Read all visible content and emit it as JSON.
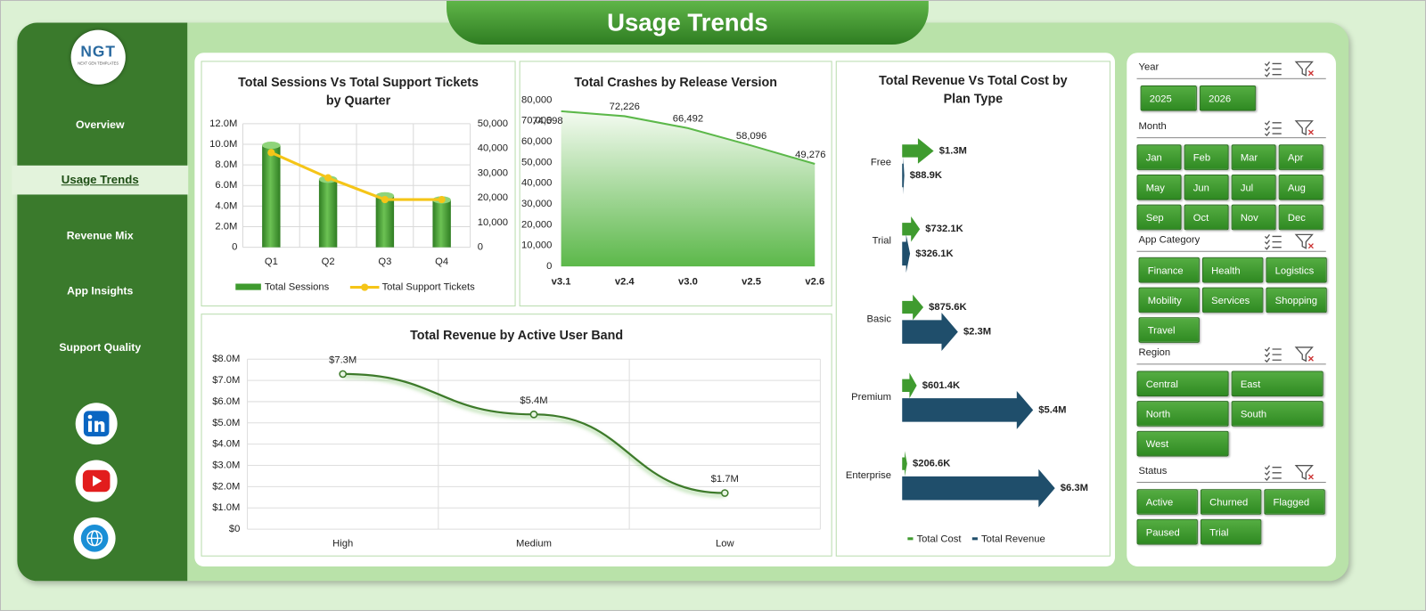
{
  "header": {
    "title": "Usage Trends"
  },
  "logo": {
    "text": "NGT",
    "tagline": "NEXT GEN TEMPLATES"
  },
  "nav": {
    "items": [
      "Overview",
      "Usage Trends",
      "Revenue Mix",
      "App Insights",
      "Support Quality"
    ],
    "active": 1
  },
  "slicers": [
    {
      "title": "Year",
      "items": [
        "2025",
        "2026"
      ]
    },
    {
      "title": "Month",
      "items": [
        "Jan",
        "Feb",
        "Mar",
        "Apr",
        "May",
        "Jun",
        "Jul",
        "Aug",
        "Sep",
        "Oct",
        "Nov",
        "Dec"
      ]
    },
    {
      "title": "App Category",
      "items": [
        "Finance",
        "Health",
        "Logistics",
        "Mobility",
        "Services",
        "Shopping",
        "Travel"
      ]
    },
    {
      "title": "Region",
      "items": [
        "Central",
        "East",
        "North",
        "South",
        "West"
      ]
    },
    {
      "title": "Status",
      "items": [
        "Active",
        "Churned",
        "Flagged",
        "Paused",
        "Trial"
      ]
    }
  ],
  "chart_data": [
    {
      "type": "bar_line",
      "title": "Total Sessions Vs Total Support Tickets by Quarter",
      "categories": [
        "Q1",
        "Q2",
        "Q3",
        "Q4"
      ],
      "series": [
        {
          "name": "Total Sessions",
          "type": "bar",
          "color": "#3f9b2f",
          "values": [
            9900000,
            6600000,
            5000000,
            4600000
          ]
        },
        {
          "name": "Total Support Tickets",
          "type": "line",
          "color": "#f5c518",
          "axis": "y2",
          "values": [
            38300,
            28100,
            19300,
            19300
          ]
        }
      ],
      "ylim": [
        0,
        12000000
      ],
      "yticks": [
        0,
        {
          "value": 2000000,
          "label": "2.0M"
        },
        {
          "value": 4000000,
          "label": "4.0M"
        },
        {
          "value": 6000000,
          "label": "6.0M"
        },
        {
          "value": 8000000,
          "label": "8.0M"
        },
        {
          "value": 10000000,
          "label": "10.0M"
        },
        {
          "value": 12000000,
          "label": "12.0M"
        }
      ],
      "y2lim": [
        0,
        50000
      ],
      "y2ticks": [
        0,
        {
          "value": 10000,
          "label": "10,000"
        },
        {
          "value": 20000,
          "label": "20,000"
        },
        {
          "value": 30000,
          "label": "30,000"
        },
        {
          "value": 40000,
          "label": "40,000"
        },
        {
          "value": 50000,
          "label": "50,000"
        }
      ],
      "grid": true
    },
    {
      "type": "area",
      "title": "Total Crashes by Release Version",
      "categories": [
        "v3.1",
        "v2.4",
        "v3.0",
        "v2.5",
        "v2.6"
      ],
      "values": [
        74598,
        72226,
        66492,
        58096,
        49276
      ],
      "value_labels": [
        "74,598",
        "72,226",
        "66,492",
        "58,096",
        "49,276"
      ],
      "color": "#5cb84a",
      "ylim": [
        0,
        80000
      ],
      "yticks": [
        0,
        {
          "value": 10000,
          "label": "10,000"
        },
        {
          "value": 20000,
          "label": "20,000"
        },
        {
          "value": 30000,
          "label": "30,000"
        },
        {
          "value": 40000,
          "label": "40,000"
        },
        {
          "value": 50000,
          "label": "50,000"
        },
        {
          "value": 60000,
          "label": "60,000"
        },
        {
          "value": 70000,
          "label": "70,000"
        },
        {
          "value": 80000,
          "label": "80,000"
        }
      ],
      "grid": false
    },
    {
      "type": "line",
      "title": "Total Revenue by Active User Band",
      "categories": [
        "High",
        "Medium",
        "Low"
      ],
      "values": [
        7300000,
        5400000,
        1700000
      ],
      "value_labels": [
        "$7.3M",
        "$5.4M",
        "$1.7M"
      ],
      "color": "#3d7a2a",
      "ylim": [
        0,
        8000000
      ],
      "yticks": [
        {
          "value": 0,
          "label": "$0"
        },
        {
          "value": 1000000,
          "label": "$1.0M"
        },
        {
          "value": 2000000,
          "label": "$2.0M"
        },
        {
          "value": 3000000,
          "label": "$3.0M"
        },
        {
          "value": 4000000,
          "label": "$4.0M"
        },
        {
          "value": 5000000,
          "label": "$5.0M"
        },
        {
          "value": 6000000,
          "label": "$6.0M"
        },
        {
          "value": 7000000,
          "label": "$7.0M"
        },
        {
          "value": 8000000,
          "label": "$8.0M"
        }
      ],
      "grid": true
    },
    {
      "type": "hbar",
      "title": "Total Revenue Vs Total Cost by Plan Type",
      "categories": [
        "Free",
        "Trial",
        "Basic",
        "Premium",
        "Enterprise"
      ],
      "series": [
        {
          "name": "Total Cost",
          "color": "#3f9b2f",
          "values": [
            1300000,
            732100,
            875600,
            601400,
            206600
          ],
          "value_labels": [
            "$1.3M",
            "$732.1K",
            "$875.6K",
            "$601.4K",
            "$206.6K"
          ]
        },
        {
          "name": "Total Revenue",
          "color": "#1f4e6b",
          "values": [
            88900,
            326100,
            2300000,
            5400000,
            6300000
          ],
          "value_labels": [
            "$88.9K",
            "$326.1K",
            "$2.3M",
            "$5.4M",
            "$6.3M"
          ]
        }
      ]
    }
  ]
}
